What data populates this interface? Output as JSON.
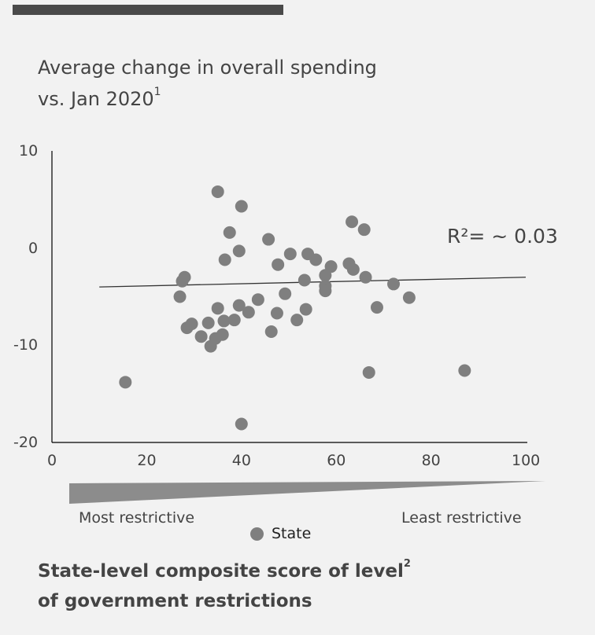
{
  "header": {
    "title_line1": "Average change in overall spending",
    "title_line2": "vs. Jan 2020",
    "title_note": "1"
  },
  "annotation": {
    "text": "R²= ~ 0.03"
  },
  "scale": {
    "left_label": "Most restrictive",
    "right_label": "Least restrictive"
  },
  "legend": {
    "label": "State",
    "color": "#7f7f7f"
  },
  "footer": {
    "line1": "State-level composite score of level",
    "line1_note": "2",
    "line2": "of government restrictions"
  },
  "colors": {
    "points": "#7f7f7f",
    "axis": "#000000",
    "trendline": "#333333",
    "gradient": "#8c8c8c"
  },
  "chart_data": {
    "type": "scatter",
    "xlim": [
      0,
      100
    ],
    "ylim": [
      -20,
      10
    ],
    "xticks": [
      0,
      20,
      40,
      60,
      80,
      100
    ],
    "yticks": [
      -20,
      -10,
      0,
      10
    ],
    "xtick_labels": [
      "0",
      "20",
      "40",
      "60",
      "80",
      "100"
    ],
    "ytick_labels": [
      "-20",
      "-10",
      "0",
      "10"
    ],
    "grid": false,
    "legend_position": "bottom",
    "trendline": {
      "x": [
        10,
        100
      ],
      "y": [
        -4.0,
        -3.0
      ],
      "r_squared": 0.03
    },
    "series": [
      {
        "name": "State",
        "points": [
          {
            "x": 15.5,
            "y": -13.8
          },
          {
            "x": 27.0,
            "y": -5.0
          },
          {
            "x": 27.5,
            "y": -3.4
          },
          {
            "x": 28.0,
            "y": -3.0
          },
          {
            "x": 28.5,
            "y": -8.2
          },
          {
            "x": 29.5,
            "y": -7.8
          },
          {
            "x": 31.5,
            "y": -9.1
          },
          {
            "x": 33.0,
            "y": -7.7
          },
          {
            "x": 33.5,
            "y": -10.1
          },
          {
            "x": 34.5,
            "y": -9.3
          },
          {
            "x": 35.0,
            "y": -6.2
          },
          {
            "x": 35.0,
            "y": 5.8
          },
          {
            "x": 36.0,
            "y": -8.9
          },
          {
            "x": 36.3,
            "y": -7.5
          },
          {
            "x": 36.5,
            "y": -1.2
          },
          {
            "x": 37.5,
            "y": 1.6
          },
          {
            "x": 38.5,
            "y": -7.4
          },
          {
            "x": 39.5,
            "y": -0.3
          },
          {
            "x": 39.5,
            "y": -5.9
          },
          {
            "x": 40.0,
            "y": -18.1
          },
          {
            "x": 40.0,
            "y": 4.3
          },
          {
            "x": 41.5,
            "y": -6.6
          },
          {
            "x": 43.5,
            "y": -5.3
          },
          {
            "x": 45.7,
            "y": 0.9
          },
          {
            "x": 46.3,
            "y": -8.6
          },
          {
            "x": 47.5,
            "y": -6.7
          },
          {
            "x": 47.7,
            "y": -1.7
          },
          {
            "x": 49.2,
            "y": -4.7
          },
          {
            "x": 50.3,
            "y": -0.6
          },
          {
            "x": 51.7,
            "y": -7.4
          },
          {
            "x": 53.3,
            "y": -3.3
          },
          {
            "x": 53.6,
            "y": -6.3
          },
          {
            "x": 54.0,
            "y": -0.6
          },
          {
            "x": 55.7,
            "y": -1.2
          },
          {
            "x": 57.7,
            "y": -2.8
          },
          {
            "x": 57.7,
            "y": -3.9
          },
          {
            "x": 57.7,
            "y": -4.4
          },
          {
            "x": 58.9,
            "y": -1.9
          },
          {
            "x": 62.7,
            "y": -1.6
          },
          {
            "x": 63.3,
            "y": 2.7
          },
          {
            "x": 63.6,
            "y": -2.2
          },
          {
            "x": 65.9,
            "y": 1.9
          },
          {
            "x": 66.2,
            "y": -3.0
          },
          {
            "x": 66.9,
            "y": -12.8
          },
          {
            "x": 68.6,
            "y": -6.1
          },
          {
            "x": 72.1,
            "y": -3.7
          },
          {
            "x": 75.4,
            "y": -5.1
          },
          {
            "x": 87.1,
            "y": -12.6
          }
        ]
      }
    ]
  }
}
